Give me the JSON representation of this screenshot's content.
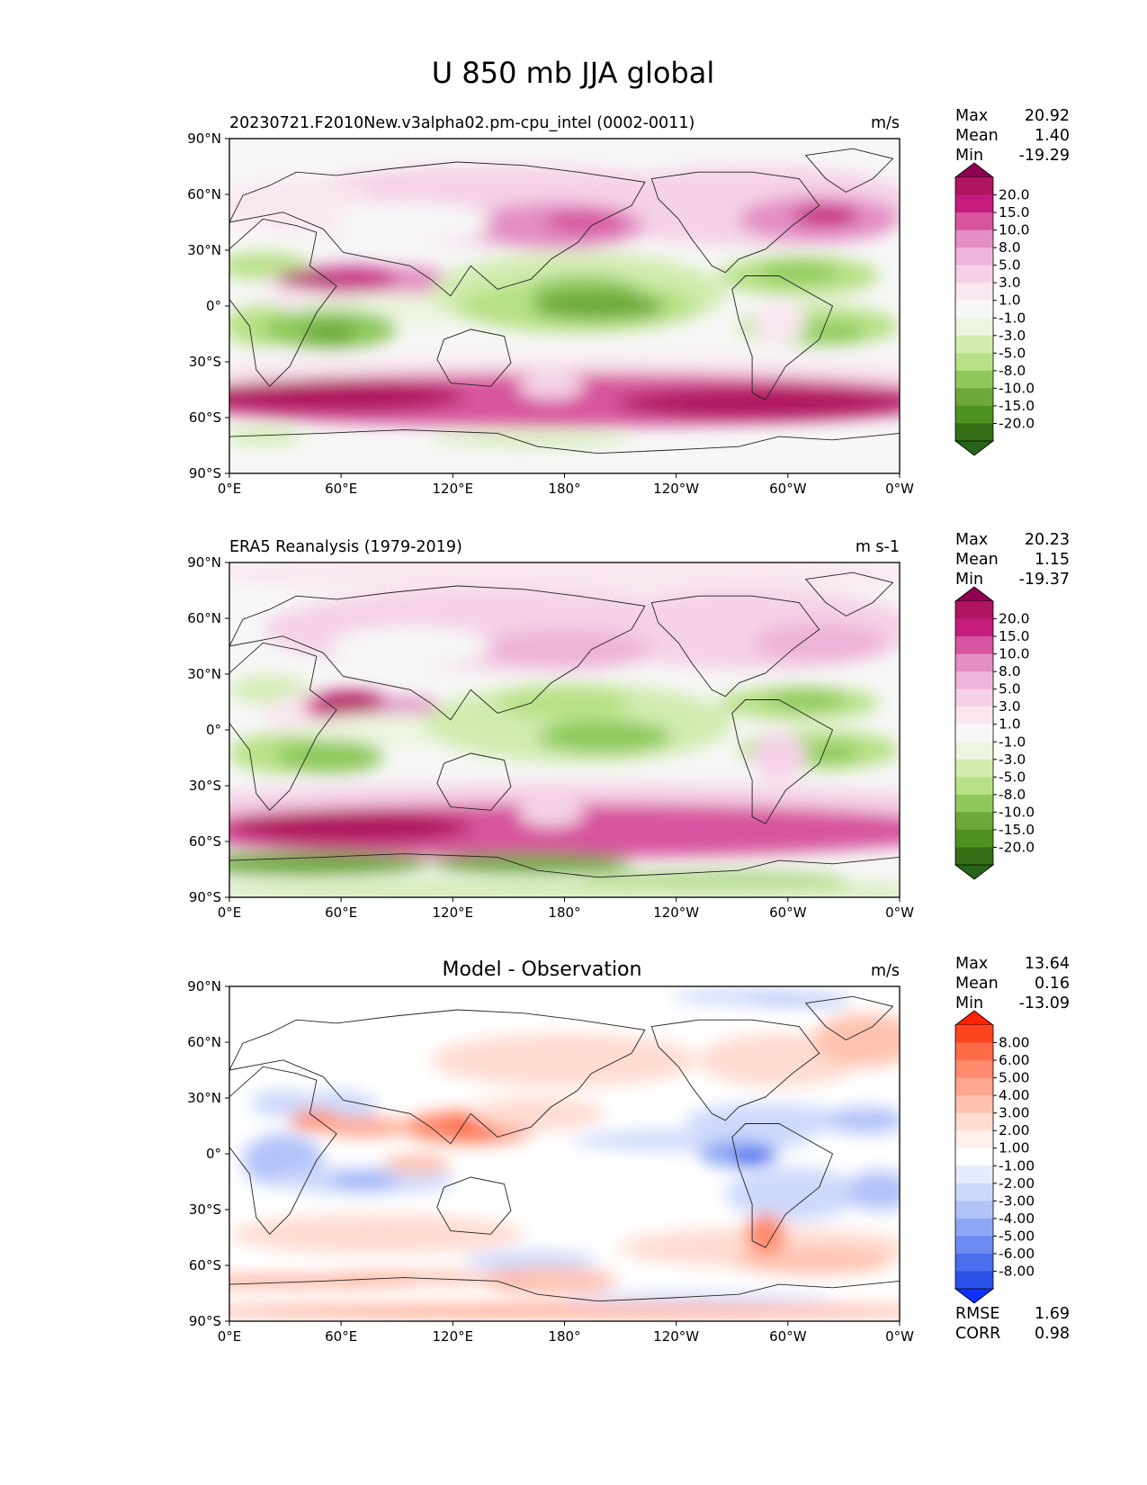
{
  "figure": {
    "title": "U 850 mb JJA global"
  },
  "axes": {
    "lat_ticks": [
      "90°N",
      "60°N",
      "30°N",
      "0°",
      "30°S",
      "60°S",
      "90°S"
    ],
    "lon_ticks": [
      "0°E",
      "60°E",
      "120°E",
      "180°",
      "120°W",
      "60°W",
      "0°W"
    ]
  },
  "panels": [
    {
      "title_left": "20230721.F2010New.v3alpha02.pm-cpu_intel (0002-0011)",
      "title_center": "",
      "units": "m/s",
      "stats": [
        {
          "label": "Max",
          "value": "20.92"
        },
        {
          "label": "Mean",
          "value": "1.40"
        },
        {
          "label": "Min",
          "value": "-19.29"
        }
      ],
      "colorbar": {
        "labels": [
          "20.0",
          "15.0",
          "10.0",
          "8.0",
          "5.0",
          "3.0",
          "1.0",
          "-1.0",
          "-3.0",
          "-5.0",
          "-8.0",
          "-10.0",
          "-15.0",
          "-20.0"
        ],
        "colors": [
          "#8e0152",
          "#b0155f",
          "#c51b7d",
          "#d7559e",
          "#e38ec4",
          "#eeb3d8",
          "#f5d1e7",
          "#f9e7f0",
          "#f7f7f7",
          "#ecf5de",
          "#d2ecb0",
          "#b8e186",
          "#8fc95c",
          "#6ca83a",
          "#4d9221",
          "#336e16",
          "#276419"
        ]
      }
    },
    {
      "title_left": "ERA5 Reanalysis (1979-2019)",
      "title_center": "",
      "units": "m s-1",
      "stats": [
        {
          "label": "Max",
          "value": "20.23"
        },
        {
          "label": "Mean",
          "value": "1.15"
        },
        {
          "label": "Min",
          "value": "-19.37"
        }
      ],
      "colorbar": {
        "labels": [
          "20.0",
          "15.0",
          "10.0",
          "8.0",
          "5.0",
          "3.0",
          "1.0",
          "-1.0",
          "-3.0",
          "-5.0",
          "-8.0",
          "-10.0",
          "-15.0",
          "-20.0"
        ],
        "colors": [
          "#8e0152",
          "#b0155f",
          "#c51b7d",
          "#d7559e",
          "#e38ec4",
          "#eeb3d8",
          "#f5d1e7",
          "#f9e7f0",
          "#f7f7f7",
          "#ecf5de",
          "#d2ecb0",
          "#b8e186",
          "#8fc95c",
          "#6ca83a",
          "#4d9221",
          "#336e16",
          "#276419"
        ]
      }
    },
    {
      "title_left": "",
      "title_center": "Model - Observation",
      "units": "m/s",
      "stats": [
        {
          "label": "Max",
          "value": "13.64"
        },
        {
          "label": "Mean",
          "value": "0.16"
        },
        {
          "label": "Min",
          "value": "-13.09"
        }
      ],
      "colorbar": {
        "labels": [
          "8.00",
          "6.00",
          "5.00",
          "4.00",
          "3.00",
          "2.00",
          "1.00",
          "-1.00",
          "-2.00",
          "-3.00",
          "-4.00",
          "-5.00",
          "-6.00",
          "-8.00"
        ],
        "colors": [
          "#ff2200",
          "#ff4422",
          "#ff6a48",
          "#ff8a6c",
          "#ffa68e",
          "#ffc2b0",
          "#ffdcd2",
          "#fff0ec",
          "#ffffff",
          "#e6ecfd",
          "#cdd9fb",
          "#b2c3f8",
          "#8ea7f4",
          "#6c8af0",
          "#4a6eec",
          "#2a52e8",
          "#1030ff"
        ]
      },
      "metrics": [
        {
          "label": "RMSE",
          "value": "1.69"
        },
        {
          "label": "CORR",
          "value": "0.98"
        }
      ]
    }
  ]
}
